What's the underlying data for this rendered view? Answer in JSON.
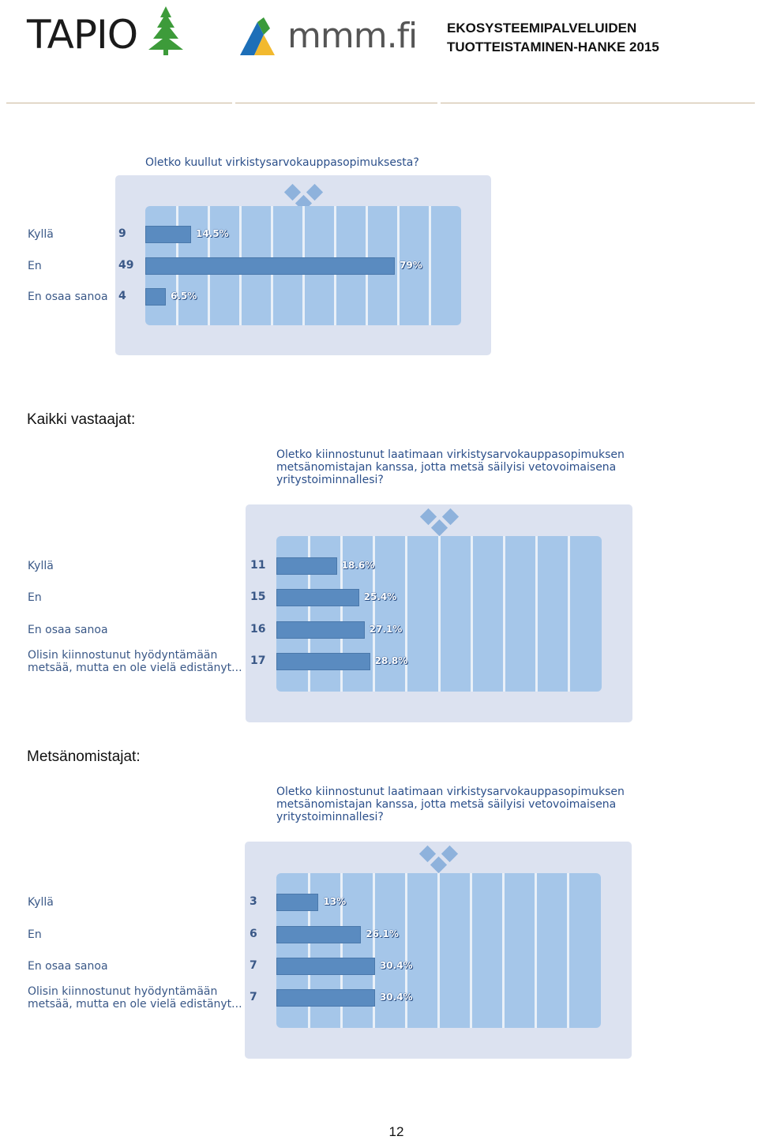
{
  "header": {
    "logo_left_text": "TAPIO",
    "logo_right_text": "mmm.fi",
    "title_line1": "EKOSYSTEEMIPALVELUIDEN",
    "title_line2": "TUOTTEISTAMINEN-HANKE 2015"
  },
  "sections": [
    {
      "label": ""
    },
    {
      "label": "Kaikki vastaajat:"
    },
    {
      "label": "Metsänomistajat:"
    }
  ],
  "colors": {
    "panel": "#dce2f0",
    "plot": "#a5c6e9",
    "bar": "#5a8bc0",
    "text_blue": "#3a5887",
    "title_blue": "#2b4f8a",
    "tapio_green": "#3d9b3a"
  },
  "icons": [
    "tree-icon",
    "mountain-logo-icon",
    "diamond-icon"
  ],
  "chart_data": [
    {
      "type": "bar",
      "orientation": "horizontal",
      "title": "Oletko kuullut virkistysarvokauppasopimuksesta?",
      "categories": [
        "Kyllä",
        "En",
        "En osaa sanoa"
      ],
      "counts": [
        9,
        49,
        4
      ],
      "values": [
        14.5,
        79,
        6.5
      ],
      "value_labels": [
        "14.5%",
        "79%",
        "6.5%"
      ],
      "xlim": [
        0,
        100
      ],
      "grid": true
    },
    {
      "type": "bar",
      "orientation": "horizontal",
      "title": "Oletko kiinnostunut laatimaan virkistysarvokauppasopimuksen metsänomistajan kanssa, jotta metsä säilyisi vetovoimaisena yritystoiminnallesi?",
      "categories": [
        "Kyllä",
        "En",
        "En osaa sanoa",
        "Olisin kiinnostunut hyödyntämään metsää, mutta en ole vielä edistänyt..."
      ],
      "counts": [
        11,
        15,
        16,
        17
      ],
      "values": [
        18.6,
        25.4,
        27.1,
        28.8
      ],
      "value_labels": [
        "18.6%",
        "25.4%",
        "27.1%",
        "28.8%"
      ],
      "xlim": [
        0,
        100
      ],
      "grid": true
    },
    {
      "type": "bar",
      "orientation": "horizontal",
      "title": "Oletko kiinnostunut laatimaan virkistysarvokauppasopimuksen metsänomistajan kanssa, jotta metsä säilyisi vetovoimaisena yritystoiminnallesi?",
      "categories": [
        "Kyllä",
        "En",
        "En osaa sanoa",
        "Olisin kiinnostunut hyödyntämään metsää, mutta en ole vielä edistänyt..."
      ],
      "counts": [
        3,
        6,
        7,
        7
      ],
      "values": [
        13,
        26.1,
        30.4,
        30.4
      ],
      "value_labels": [
        "13%",
        "26.1%",
        "30.4%",
        "30.4%"
      ],
      "xlim": [
        0,
        100
      ],
      "grid": true
    }
  ],
  "page_number": "12"
}
